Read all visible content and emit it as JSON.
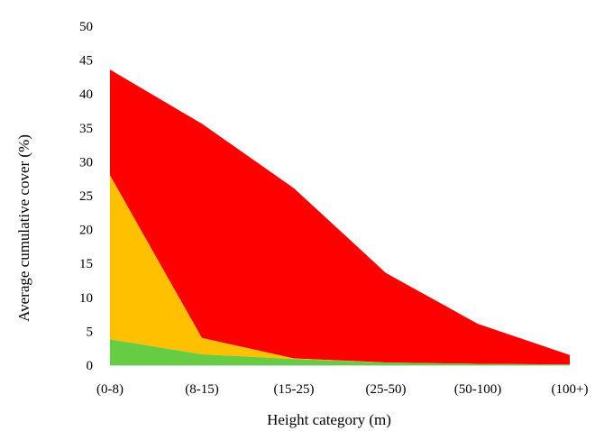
{
  "chart_data": {
    "type": "area",
    "stacked": true,
    "title": "",
    "xlabel": "Height category (m)",
    "ylabel": "Average cumulative cover (%)",
    "categories": [
      "(0-8)",
      "(8-15)",
      "(15-25)",
      "(25-50)",
      "(50-100)",
      "(100+)"
    ],
    "ylim": [
      0,
      50
    ],
    "yticks": [
      0,
      5,
      10,
      15,
      20,
      25,
      30,
      35,
      40,
      45,
      50
    ],
    "grid": false,
    "legend": "none",
    "series": [
      {
        "color": "#66cc44",
        "values": [
          3.8,
          1.6,
          0.9,
          0.4,
          0.2,
          0.1
        ]
      },
      {
        "color": "#ffc000",
        "values": [
          24.2,
          2.4,
          0.1,
          0.0,
          0.0,
          0.0
        ]
      },
      {
        "color": "#ff0000",
        "values": [
          15.6,
          31.6,
          25.1,
          13.2,
          5.9,
          1.4
        ]
      }
    ]
  }
}
